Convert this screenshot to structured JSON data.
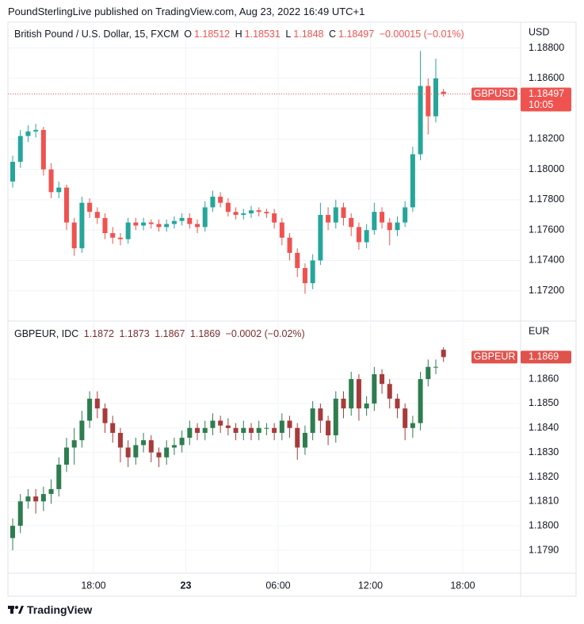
{
  "header": {
    "text": "PoundSterlingLive published on TradingView.com, Aug 23, 2022 16:49 UTC+1"
  },
  "footer": {
    "brand": "TradingView"
  },
  "ohlc_letters": [
    "O",
    "H",
    "L",
    "C"
  ],
  "chart_data": [
    {
      "type": "candlestick",
      "title": "British Pound / U.S. Dollar, 15, FXCM",
      "change": "−0.00015 (−0.01%)",
      "currency": "USD",
      "symbol": "GBPUSD",
      "countdown": "10:05",
      "up_color": "#26a69a",
      "down_color": "#ef5350",
      "legend_color": "#ef5350",
      "last_price_line": true,
      "xlim": [
        12.44,
        45.76
      ],
      "xticks": [
        {
          "value": 18,
          "label": "18:00"
        },
        {
          "value": 24,
          "label": "23"
        },
        {
          "value": 30,
          "label": "06:00"
        },
        {
          "value": 36,
          "label": "12:00"
        },
        {
          "value": 42,
          "label": "18:00"
        }
      ],
      "ylim": [
        1.17,
        1.1897
      ],
      "yticks": [
        {
          "value": 1.172,
          "label": "1.17200"
        },
        {
          "value": 1.174,
          "label": "1.17400"
        },
        {
          "value": 1.176,
          "label": "1.17600"
        },
        {
          "value": 1.178,
          "label": "1.17800"
        },
        {
          "value": 1.18,
          "label": "1.18000"
        },
        {
          "value": 1.182,
          "label": "1.18200"
        },
        {
          "value": 1.184,
          "label": "1.18400"
        },
        {
          "value": 1.186,
          "label": "1.18600"
        },
        {
          "value": 1.188,
          "label": "1.18800"
        }
      ],
      "x": [
        12.75,
        13.25,
        13.75,
        14.25,
        14.75,
        15.25,
        15.75,
        16.25,
        16.75,
        17.25,
        17.75,
        18.25,
        18.75,
        19.25,
        19.75,
        20.25,
        20.75,
        21.25,
        21.75,
        22.25,
        22.75,
        23.25,
        23.75,
        24.25,
        24.75,
        25.25,
        25.75,
        26.25,
        26.75,
        27.25,
        27.75,
        28.25,
        28.75,
        29.25,
        29.75,
        30.25,
        30.75,
        31.25,
        31.75,
        32.25,
        32.75,
        33.25,
        33.75,
        34.25,
        34.75,
        35.25,
        35.75,
        36.25,
        36.75,
        37.25,
        37.75,
        38.25,
        38.75,
        39.25,
        39.75,
        40.25,
        40.75
      ],
      "open": [
        1.1792,
        1.1805,
        1.1822,
        1.1825,
        1.1826,
        1.18,
        1.1785,
        1.1788,
        1.1765,
        1.1748,
        1.1778,
        1.1772,
        1.1768,
        1.1758,
        1.1755,
        1.1754,
        1.1765,
        1.1763,
        1.1765,
        1.1764,
        1.1762,
        1.1764,
        1.1766,
        1.1768,
        1.1764,
        1.1762,
        1.1775,
        1.1782,
        1.1778,
        1.1772,
        1.177,
        1.1771,
        1.1773,
        1.1772,
        1.1771,
        1.1765,
        1.1755,
        1.1745,
        1.1735,
        1.1725,
        1.174,
        1.177,
        1.1765,
        1.1775,
        1.1768,
        1.1762,
        1.1752,
        1.176,
        1.1772,
        1.1765,
        1.176,
        1.1765,
        1.1775,
        1.181,
        1.1855,
        1.1835,
        1.18512
      ],
      "high": [
        1.1809,
        1.1826,
        1.1829,
        1.183,
        1.1828,
        1.1804,
        1.1792,
        1.179,
        1.1768,
        1.1782,
        1.1781,
        1.1775,
        1.1771,
        1.1762,
        1.1758,
        1.1768,
        1.1768,
        1.1768,
        1.1767,
        1.1767,
        1.1767,
        1.1769,
        1.1771,
        1.1771,
        1.1767,
        1.1779,
        1.1786,
        1.1785,
        1.1781,
        1.1775,
        1.1774,
        1.1776,
        1.1775,
        1.1774,
        1.1774,
        1.1768,
        1.1758,
        1.1748,
        1.1738,
        1.1744,
        1.1778,
        1.1775,
        1.178,
        1.1778,
        1.1771,
        1.1765,
        1.1764,
        1.1778,
        1.1775,
        1.1768,
        1.1769,
        1.1779,
        1.1815,
        1.1878,
        1.186,
        1.1873,
        1.18531
      ],
      "low": [
        1.1788,
        1.1801,
        1.1818,
        1.1821,
        1.1796,
        1.1781,
        1.1781,
        1.176,
        1.1743,
        1.1745,
        1.1768,
        1.1764,
        1.1754,
        1.1751,
        1.175,
        1.1751,
        1.176,
        1.176,
        1.1761,
        1.1759,
        1.1759,
        1.1761,
        1.1763,
        1.1761,
        1.1758,
        1.1759,
        1.1772,
        1.1775,
        1.1769,
        1.1767,
        1.1767,
        1.1768,
        1.1769,
        1.1768,
        1.1761,
        1.175,
        1.174,
        1.1729,
        1.1718,
        1.1721,
        1.1737,
        1.176,
        1.1761,
        1.1763,
        1.1756,
        1.1747,
        1.1748,
        1.1757,
        1.1761,
        1.175,
        1.1756,
        1.1762,
        1.1772,
        1.1806,
        1.1823,
        1.1831,
        1.1848
      ],
      "close": [
        1.1805,
        1.1822,
        1.1825,
        1.1826,
        1.18,
        1.1785,
        1.1788,
        1.1765,
        1.1748,
        1.1778,
        1.1772,
        1.1768,
        1.1758,
        1.1755,
        1.1754,
        1.1765,
        1.1763,
        1.1765,
        1.1764,
        1.1762,
        1.1764,
        1.1766,
        1.1768,
        1.1764,
        1.1762,
        1.1775,
        1.1782,
        1.1778,
        1.1772,
        1.177,
        1.1771,
        1.1773,
        1.1772,
        1.1771,
        1.1765,
        1.1755,
        1.1745,
        1.1735,
        1.1725,
        1.174,
        1.177,
        1.1765,
        1.1775,
        1.1768,
        1.1762,
        1.1752,
        1.176,
        1.1772,
        1.1765,
        1.176,
        1.1765,
        1.1775,
        1.181,
        1.1855,
        1.1835,
        1.186,
        1.18497
      ]
    },
    {
      "type": "candlestick",
      "title": "GBPEUR, IDC",
      "change": "−0.0002 (−0.02%)",
      "currency": "EUR",
      "symbol": "GBPEUR",
      "up_color": "#2e7d4f",
      "down_color": "#a83a3a",
      "legend_color": "#7a2e2e",
      "last_price_line": false,
      "xlim": [
        12.44,
        45.76
      ],
      "xticks": [
        {
          "value": 18,
          "label": "18:00"
        },
        {
          "value": 24,
          "label": "23"
        },
        {
          "value": 30,
          "label": "06:00"
        },
        {
          "value": 36,
          "label": "12:00"
        },
        {
          "value": 42,
          "label": "18:00"
        }
      ],
      "ylim": [
        1.17806,
        1.18837
      ],
      "yticks": [
        {
          "value": 1.179,
          "label": "1.1790"
        },
        {
          "value": 1.18,
          "label": "1.1800"
        },
        {
          "value": 1.181,
          "label": "1.1810"
        },
        {
          "value": 1.182,
          "label": "1.1820"
        },
        {
          "value": 1.183,
          "label": "1.1830"
        },
        {
          "value": 1.184,
          "label": "1.1840"
        },
        {
          "value": 1.185,
          "label": "1.1850"
        },
        {
          "value": 1.186,
          "label": "1.1860"
        }
      ],
      "x": [
        12.75,
        13.25,
        13.75,
        14.25,
        14.75,
        15.25,
        15.75,
        16.25,
        16.75,
        17.25,
        17.75,
        18.25,
        18.75,
        19.25,
        19.75,
        20.25,
        20.75,
        21.25,
        21.75,
        22.25,
        22.75,
        23.25,
        23.75,
        24.25,
        24.75,
        25.25,
        25.75,
        26.25,
        26.75,
        27.25,
        27.75,
        28.25,
        28.75,
        29.25,
        29.75,
        30.25,
        30.75,
        31.25,
        31.75,
        32.25,
        32.75,
        33.25,
        33.75,
        34.25,
        34.75,
        35.25,
        35.75,
        36.25,
        36.75,
        37.25,
        37.75,
        38.25,
        38.75,
        39.25,
        39.75,
        40.25,
        40.75
      ],
      "open": [
        1.1795,
        1.18,
        1.181,
        1.1812,
        1.181,
        1.1813,
        1.1815,
        1.1825,
        1.1832,
        1.1835,
        1.1843,
        1.1852,
        1.1848,
        1.1842,
        1.1838,
        1.1832,
        1.1828,
        1.1833,
        1.1835,
        1.183,
        1.1828,
        1.1832,
        1.1833,
        1.1836,
        1.184,
        1.1838,
        1.184,
        1.1843,
        1.1841,
        1.184,
        1.1838,
        1.184,
        1.1838,
        1.184,
        1.184,
        1.1838,
        1.1843,
        1.184,
        1.1832,
        1.1838,
        1.1848,
        1.1843,
        1.1837,
        1.1852,
        1.1848,
        1.186,
        1.1848,
        1.185,
        1.1862,
        1.1858,
        1.1852,
        1.1848,
        1.184,
        1.1842,
        1.186,
        1.1865,
        1.1872
      ],
      "high": [
        1.1803,
        1.1813,
        1.1815,
        1.1815,
        1.1816,
        1.1819,
        1.1828,
        1.1836,
        1.184,
        1.1847,
        1.1855,
        1.1855,
        1.185,
        1.1845,
        1.184,
        1.1835,
        1.1836,
        1.1838,
        1.1837,
        1.1832,
        1.1835,
        1.1836,
        1.1839,
        1.1843,
        1.1842,
        1.1843,
        1.1846,
        1.1845,
        1.1844,
        1.1842,
        1.1843,
        1.1842,
        1.1843,
        1.1842,
        1.1842,
        1.1846,
        1.1845,
        1.1842,
        1.1841,
        1.1851,
        1.185,
        1.1845,
        1.1855,
        1.1855,
        1.1863,
        1.1862,
        1.1853,
        1.1865,
        1.1864,
        1.186,
        1.1854,
        1.185,
        1.1845,
        1.1863,
        1.1868,
        1.1868,
        1.1873
      ],
      "low": [
        1.179,
        1.1797,
        1.1807,
        1.1805,
        1.1806,
        1.1809,
        1.1812,
        1.1822,
        1.1825,
        1.1832,
        1.184,
        1.1844,
        1.1838,
        1.1834,
        1.1826,
        1.1824,
        1.1825,
        1.183,
        1.1826,
        1.1824,
        1.1825,
        1.1829,
        1.183,
        1.1833,
        1.1835,
        1.1835,
        1.1837,
        1.1838,
        1.1837,
        1.1835,
        1.1835,
        1.1835,
        1.1835,
        1.1837,
        1.1835,
        1.1835,
        1.1836,
        1.1827,
        1.1829,
        1.1835,
        1.1838,
        1.1833,
        1.1834,
        1.1844,
        1.1845,
        1.1843,
        1.1845,
        1.1847,
        1.1854,
        1.1848,
        1.1844,
        1.1835,
        1.1836,
        1.1839,
        1.1857,
        1.1862,
        1.1867
      ],
      "close": [
        1.18,
        1.181,
        1.1812,
        1.181,
        1.1813,
        1.1815,
        1.1825,
        1.1832,
        1.1835,
        1.1843,
        1.1852,
        1.1848,
        1.1842,
        1.1838,
        1.1832,
        1.1828,
        1.1833,
        1.1835,
        1.183,
        1.1828,
        1.1832,
        1.1833,
        1.1836,
        1.184,
        1.1838,
        1.184,
        1.1843,
        1.1841,
        1.184,
        1.1838,
        1.184,
        1.1838,
        1.184,
        1.184,
        1.1838,
        1.1843,
        1.184,
        1.1832,
        1.1838,
        1.1848,
        1.1843,
        1.1837,
        1.1852,
        1.1848,
        1.186,
        1.1848,
        1.185,
        1.1862,
        1.1858,
        1.1852,
        1.1848,
        1.184,
        1.1842,
        1.186,
        1.1865,
        1.1865,
        1.1869
      ]
    }
  ]
}
